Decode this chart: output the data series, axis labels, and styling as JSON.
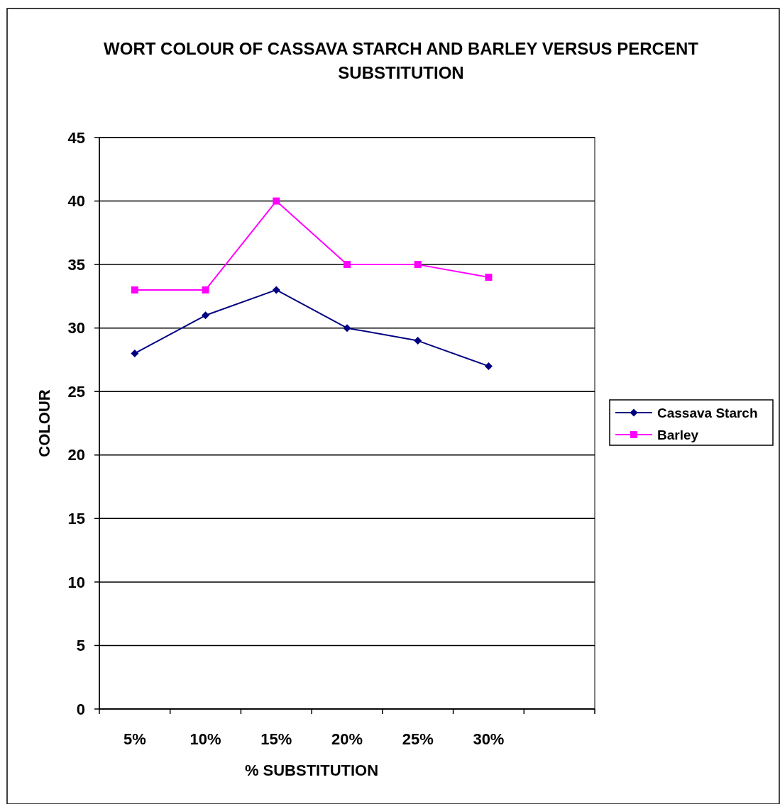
{
  "chart_data": {
    "type": "line",
    "title": "WORT COLOUR OF CASSAVA STARCH AND BARLEY VERSUS PERCENT SUBSTITUTION",
    "xlabel": "% SUBSTITUTION",
    "ylabel": "COLOUR",
    "categories": [
      "5%",
      "10%",
      "15%",
      "20%",
      "25%",
      "30%",
      null
    ],
    "series": [
      {
        "name": "Cassava Starch",
        "color": "#000080",
        "marker": "diamond",
        "values": [
          28,
          31,
          33,
          30,
          29,
          27,
          null
        ]
      },
      {
        "name": "Barley",
        "color": "#ff00ff",
        "marker": "square",
        "values": [
          33,
          33,
          40,
          35,
          35,
          34,
          null
        ]
      }
    ],
    "ylim": [
      0,
      45
    ],
    "yticks": [
      0,
      5,
      10,
      15,
      20,
      25,
      30,
      35,
      40,
      45
    ],
    "grid": "y",
    "legend": "right"
  }
}
